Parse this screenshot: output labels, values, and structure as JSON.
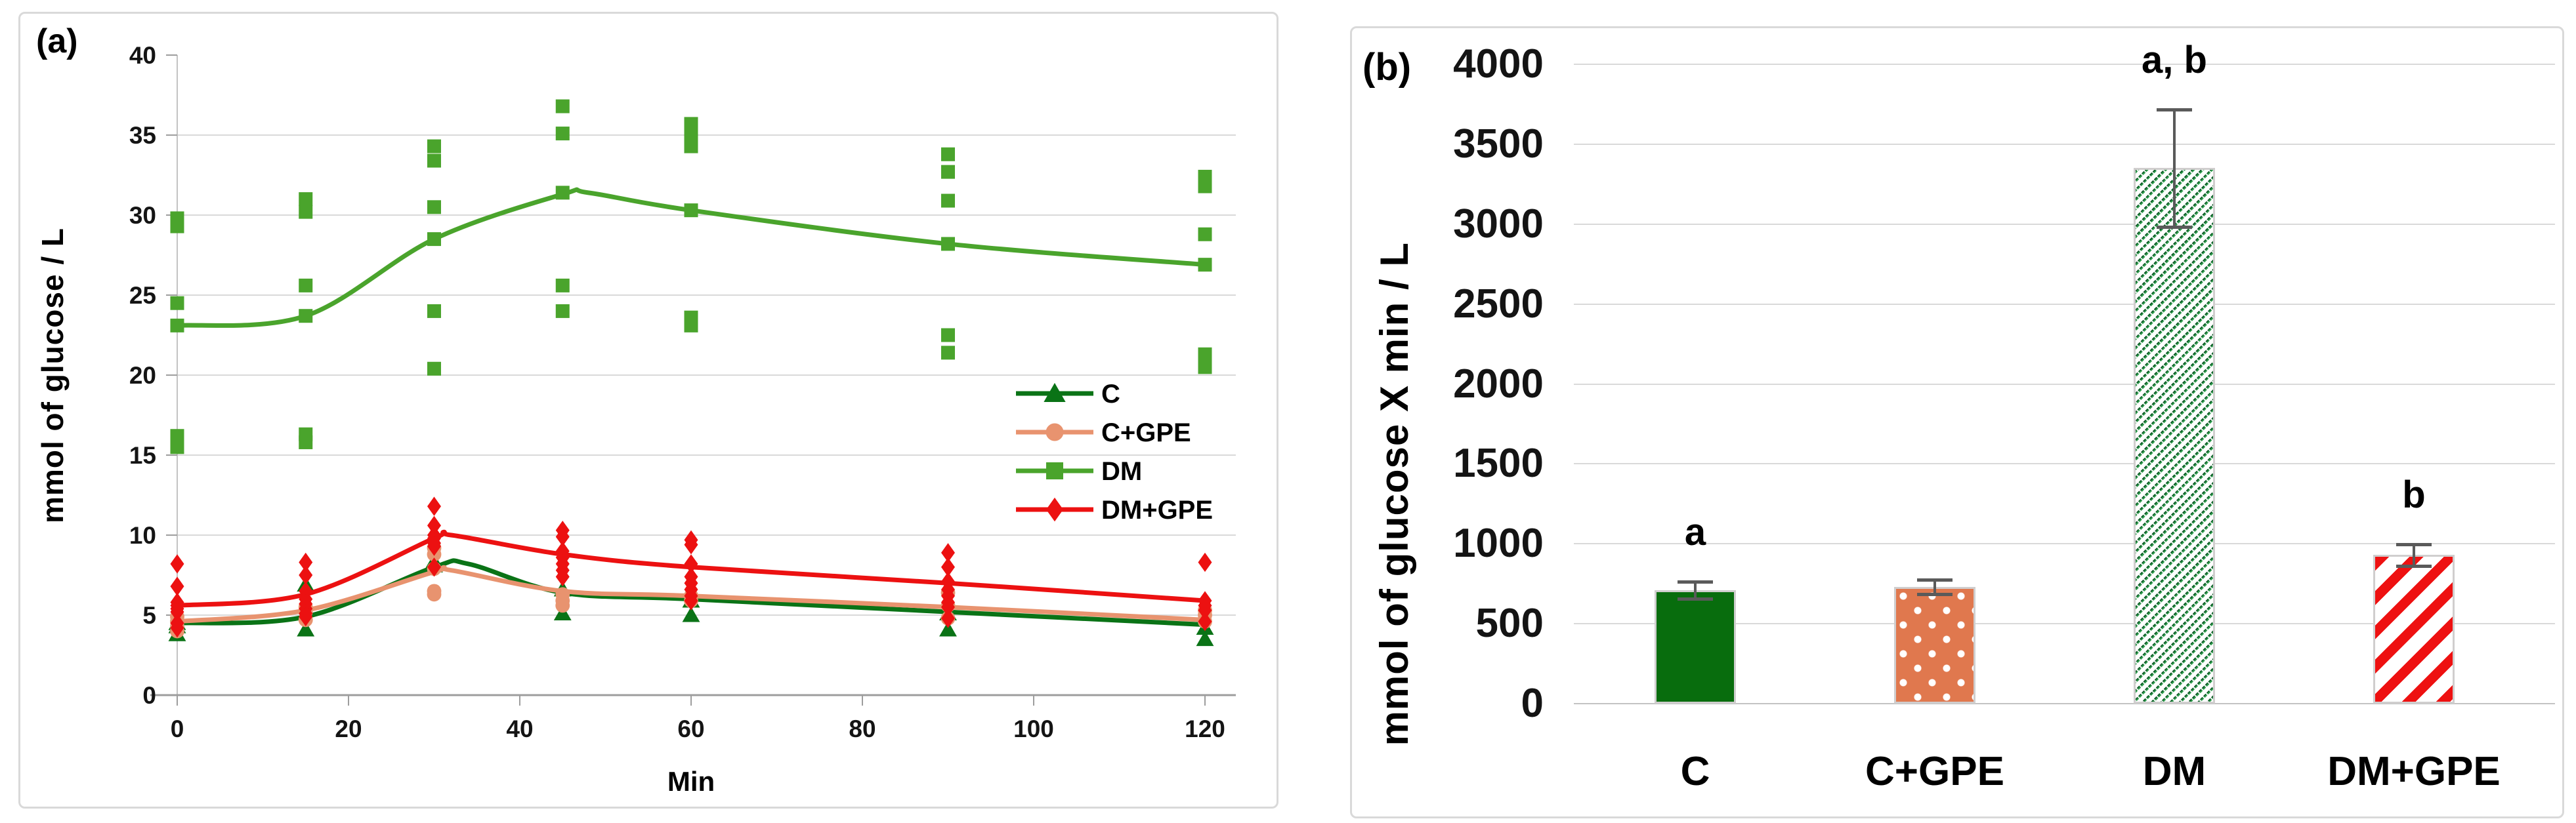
{
  "panels": {
    "a_label": "(a)",
    "b_label": "(b)"
  },
  "colors": {
    "c_green": "#0a7316",
    "c_gpe_salmon": "#e8936f",
    "dm_green": "#4aa42c",
    "dm_gpe_red": "#ec1111",
    "bar_c_fill": "#086d0d",
    "bar_c_gpe_fill": "#e0784e",
    "bar_dm_hatch": "#2f9e4e",
    "bar_dm_hatch_dark": "#115f2a",
    "bar_dm_gpe_stripe": "#ee1111",
    "dot_white": "#ffffff",
    "gridline": "#d9d9d9",
    "axis": "#9d9d9d",
    "axis_light": "#c3c3c3",
    "error_bar": "#5a5a5a",
    "bar_border": "#d0cece",
    "panel_border": "#d9d9d9",
    "text": "#000000"
  },
  "chart_data": [
    {
      "type": "scatter",
      "panel": "a",
      "xlabel": "Min",
      "ylabel": "mmol of glucose / L",
      "xlim": [
        0,
        120
      ],
      "ylim": [
        0,
        40
      ],
      "x_ticks": [
        0,
        20,
        40,
        60,
        80,
        100,
        120
      ],
      "y_ticks": [
        0,
        5,
        10,
        15,
        20,
        25,
        30,
        35,
        40
      ],
      "grid": "horizontal",
      "legend_position": "inside-right",
      "series": [
        {
          "name": "C",
          "marker": "triangle",
          "color": "#0a7316",
          "points": [
            [
              0,
              4.5
            ],
            [
              0,
              4.3
            ],
            [
              0,
              3.8
            ],
            [
              15,
              6.9
            ],
            [
              15,
              4.1
            ],
            [
              30,
              8.35
            ],
            [
              30,
              8.1
            ],
            [
              45,
              6.6
            ],
            [
              45,
              5.1
            ],
            [
              60,
              5.9
            ],
            [
              60,
              5.0
            ],
            [
              90,
              5.1
            ],
            [
              90,
              4.1
            ],
            [
              120,
              4.2
            ],
            [
              120,
              3.5
            ]
          ],
          "trend": [
            [
              0,
              4.5
            ],
            [
              15,
              4.9
            ],
            [
              30,
              8.0
            ],
            [
              34,
              8.2
            ],
            [
              45,
              6.4
            ],
            [
              60,
              6.0
            ],
            [
              90,
              5.2
            ],
            [
              120,
              4.4
            ]
          ]
        },
        {
          "name": "C+GPE",
          "marker": "circle",
          "color": "#e8936f",
          "points": [
            [
              0,
              4.9
            ],
            [
              0,
              4.6
            ],
            [
              0,
              4.3
            ],
            [
              0,
              4.0
            ],
            [
              15,
              5.5
            ],
            [
              15,
              5.2
            ],
            [
              15,
              4.7
            ],
            [
              30,
              9.2
            ],
            [
              30,
              8.8
            ],
            [
              30,
              7.9
            ],
            [
              30,
              6.5
            ],
            [
              30,
              6.3
            ],
            [
              45,
              6.3
            ],
            [
              45,
              5.9
            ],
            [
              45,
              5.6
            ],
            [
              60,
              6.2
            ],
            [
              60,
              5.9
            ],
            [
              90,
              6.4
            ],
            [
              90,
              5.6
            ],
            [
              90,
              4.8
            ],
            [
              120,
              5.3
            ],
            [
              120,
              5.0
            ],
            [
              120,
              4.6
            ]
          ],
          "trend": [
            [
              0,
              4.6
            ],
            [
              15,
              5.3
            ],
            [
              30,
              7.7
            ],
            [
              32,
              7.8
            ],
            [
              45,
              6.5
            ],
            [
              60,
              6.2
            ],
            [
              90,
              5.5
            ],
            [
              120,
              4.7
            ]
          ]
        },
        {
          "name": "DM",
          "marker": "square",
          "color": "#4aa42c",
          "points": [
            [
              0,
              29.8
            ],
            [
              0,
              29.3
            ],
            [
              0,
              24.5
            ],
            [
              0,
              23.1
            ],
            [
              0,
              16.2
            ],
            [
              0,
              15.5
            ],
            [
              15,
              31.0
            ],
            [
              15,
              30.2
            ],
            [
              15,
              25.6
            ],
            [
              15,
              23.7
            ],
            [
              15,
              16.3
            ],
            [
              15,
              15.8
            ],
            [
              30,
              34.3
            ],
            [
              30,
              33.4
            ],
            [
              30,
              30.5
            ],
            [
              30,
              28.5
            ],
            [
              30,
              24.0
            ],
            [
              30,
              20.4
            ],
            [
              45,
              36.8
            ],
            [
              45,
              35.1
            ],
            [
              45,
              31.4
            ],
            [
              45,
              25.6
            ],
            [
              45,
              24.0
            ],
            [
              60,
              35.7
            ],
            [
              60,
              35.0
            ],
            [
              60,
              34.3
            ],
            [
              60,
              30.3
            ],
            [
              60,
              23.6
            ],
            [
              60,
              23.1
            ],
            [
              90,
              33.8
            ],
            [
              90,
              32.7
            ],
            [
              90,
              30.9
            ],
            [
              90,
              28.2
            ],
            [
              90,
              22.5
            ],
            [
              90,
              21.4
            ],
            [
              120,
              32.4
            ],
            [
              120,
              31.8
            ],
            [
              120,
              28.8
            ],
            [
              120,
              26.9
            ],
            [
              120,
              21.3
            ],
            [
              120,
              20.5
            ]
          ],
          "trend": [
            [
              0,
              23.1
            ],
            [
              15,
              23.7
            ],
            [
              30,
              28.5
            ],
            [
              45,
              31.3
            ],
            [
              48,
              31.4
            ],
            [
              60,
              30.3
            ],
            [
              90,
              28.2
            ],
            [
              120,
              26.9
            ]
          ]
        },
        {
          "name": "DM+GPE",
          "marker": "diamond",
          "color": "#ec1111",
          "points": [
            [
              0,
              8.2
            ],
            [
              0,
              6.8
            ],
            [
              0,
              5.8
            ],
            [
              0,
              5.6
            ],
            [
              0,
              5.4
            ],
            [
              0,
              5.2
            ],
            [
              0,
              4.5
            ],
            [
              0,
              4.2
            ],
            [
              15,
              8.3
            ],
            [
              15,
              7.5
            ],
            [
              15,
              6.5
            ],
            [
              15,
              6.0
            ],
            [
              15,
              5.7
            ],
            [
              15,
              5.4
            ],
            [
              15,
              5.1
            ],
            [
              15,
              4.9
            ],
            [
              30,
              11.8
            ],
            [
              30,
              10.6
            ],
            [
              30,
              10.0
            ],
            [
              30,
              9.8
            ],
            [
              30,
              9.5
            ],
            [
              30,
              9.3
            ],
            [
              30,
              8.0
            ],
            [
              45,
              10.3
            ],
            [
              45,
              9.9
            ],
            [
              45,
              9.0
            ],
            [
              45,
              8.6
            ],
            [
              45,
              8.2
            ],
            [
              45,
              7.8
            ],
            [
              45,
              7.4
            ],
            [
              60,
              9.7
            ],
            [
              60,
              9.4
            ],
            [
              60,
              8.2
            ],
            [
              60,
              7.4
            ],
            [
              60,
              7.0
            ],
            [
              60,
              6.6
            ],
            [
              60,
              6.2
            ],
            [
              60,
              5.9
            ],
            [
              90,
              8.9
            ],
            [
              90,
              8.0
            ],
            [
              90,
              7.1
            ],
            [
              90,
              6.6
            ],
            [
              90,
              6.2
            ],
            [
              90,
              5.8
            ],
            [
              90,
              5.5
            ],
            [
              90,
              4.8
            ],
            [
              120,
              8.3
            ],
            [
              120,
              5.9
            ],
            [
              120,
              5.6
            ],
            [
              120,
              5.3
            ],
            [
              120,
              4.6
            ]
          ],
          "trend": [
            [
              0,
              5.6
            ],
            [
              15,
              6.3
            ],
            [
              30,
              9.8
            ],
            [
              32,
              10.0
            ],
            [
              45,
              8.8
            ],
            [
              60,
              8.0
            ],
            [
              90,
              7.0
            ],
            [
              120,
              5.9
            ]
          ]
        }
      ]
    },
    {
      "type": "bar",
      "panel": "b",
      "ylabel": "mmol of glucose X min / L",
      "ylim": [
        0,
        4000
      ],
      "y_ticks": [
        0,
        500,
        1000,
        1500,
        2000,
        2500,
        3000,
        3500,
        4000
      ],
      "grid": "horizontal",
      "categories": [
        "C",
        "C+GPE",
        "DM",
        "DM+GPE"
      ],
      "values": [
        710,
        730,
        3350,
        930
      ],
      "errors": [
        52,
        45,
        368,
        68
      ],
      "letters": [
        "a",
        "",
        "a, b",
        "b"
      ],
      "bar_styles": [
        {
          "fill": "solid",
          "color": "#086d0d"
        },
        {
          "fill": "dots",
          "color": "#e0784e",
          "dot_color": "#ffffff"
        },
        {
          "fill": "hatch",
          "color": "#2f9e4e",
          "color2": "#115f2a"
        },
        {
          "fill": "stripes",
          "color": "#ee1111"
        }
      ]
    }
  ]
}
